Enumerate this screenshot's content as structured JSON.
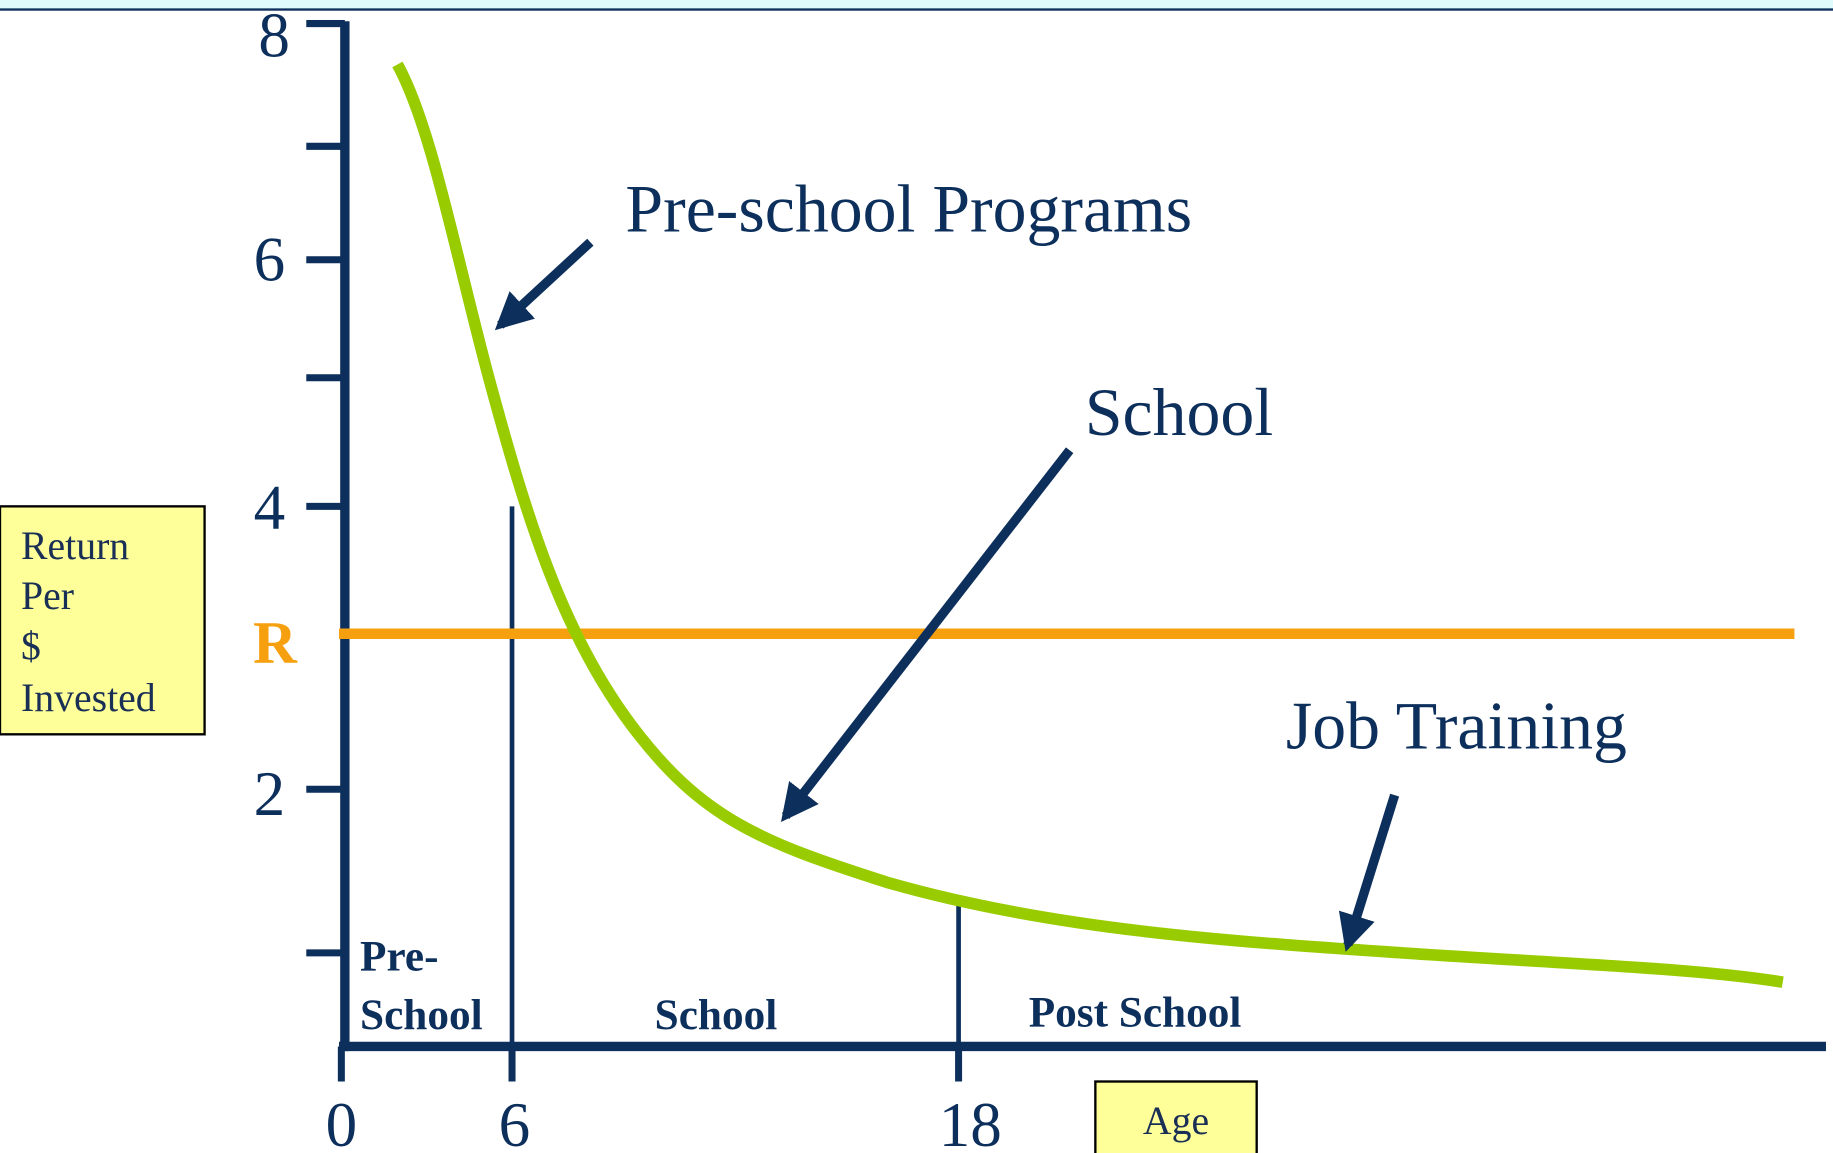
{
  "y_axis": {
    "tick_labels": [
      "8",
      "6",
      "4",
      "2"
    ],
    "threshold_label": "R",
    "label": [
      "Return",
      "Per",
      "$",
      "Invested"
    ]
  },
  "x_axis": {
    "tick_labels": [
      "0",
      "6",
      "18"
    ],
    "label": "Age"
  },
  "stages": [
    [
      "Pre-",
      "School"
    ],
    [
      "School"
    ],
    [
      "Post School"
    ]
  ],
  "annotations": [
    "Pre-school Programs",
    "School",
    "Job Training"
  ]
}
